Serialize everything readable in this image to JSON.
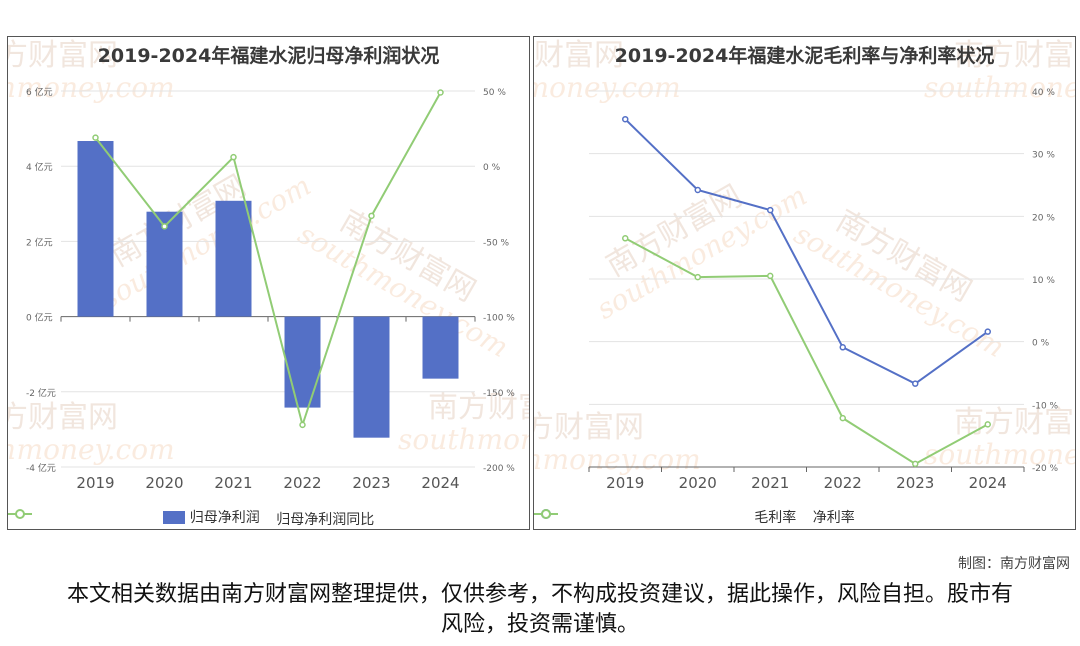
{
  "chart_data": [
    {
      "type": "bar",
      "title": "2019-2024年福建水泥归母净利润状况",
      "categories": [
        "2019",
        "2020",
        "2021",
        "2022",
        "2023",
        "2024"
      ],
      "series": [
        {
          "name": "归母净利润",
          "type": "bar",
          "axis": "left",
          "values": [
            4.67,
            2.79,
            3.08,
            -2.42,
            -3.22,
            -1.65
          ]
        },
        {
          "name": "归母净利润同比",
          "type": "line",
          "axis": "right",
          "values": [
            19,
            -40,
            6,
            -172,
            -33,
            49
          ]
        }
      ],
      "yleft": {
        "min": -4,
        "max": 6,
        "ticks": [
          "6 亿元",
          "4 亿元",
          "2 亿元",
          "0 亿元",
          "-2 亿元",
          "-4 亿元"
        ]
      },
      "yright": {
        "min": -200,
        "max": 50,
        "ticks": [
          "50 %",
          "0 %",
          "-50 %",
          "-100 %",
          "-150 %",
          "-200 %"
        ]
      },
      "legend_position": "bottom"
    },
    {
      "type": "line",
      "title": "2019-2024年福建水泥毛利率与净利率状况",
      "categories": [
        "2019",
        "2020",
        "2021",
        "2022",
        "2023",
        "2024"
      ],
      "series": [
        {
          "name": "毛利率",
          "values": [
            35.5,
            24.2,
            21.0,
            -0.9,
            -6.7,
            1.6
          ]
        },
        {
          "name": "净利率",
          "values": [
            16.5,
            10.3,
            10.5,
            -12.2,
            -19.5,
            -13.2
          ]
        }
      ],
      "yright": {
        "min": -20,
        "max": 40,
        "ticks": [
          "40 %",
          "30 %",
          "20 %",
          "10 %",
          "0 %",
          "-10 %",
          "-20 %"
        ]
      },
      "legend_position": "bottom"
    }
  ],
  "colors": {
    "bar": "#5470c6",
    "green": "#91cc75",
    "blue": "#5470c6"
  },
  "credit": "制图：南方财富网",
  "disclaimer": "本文相关数据由南方财富网整理提供，仅供参考，不构成投资建议，据此操作，风险自担。股市有风险，投资需谨慎。",
  "watermark": {
    "cn": "南方财富网",
    "en": "southmoney.com"
  }
}
